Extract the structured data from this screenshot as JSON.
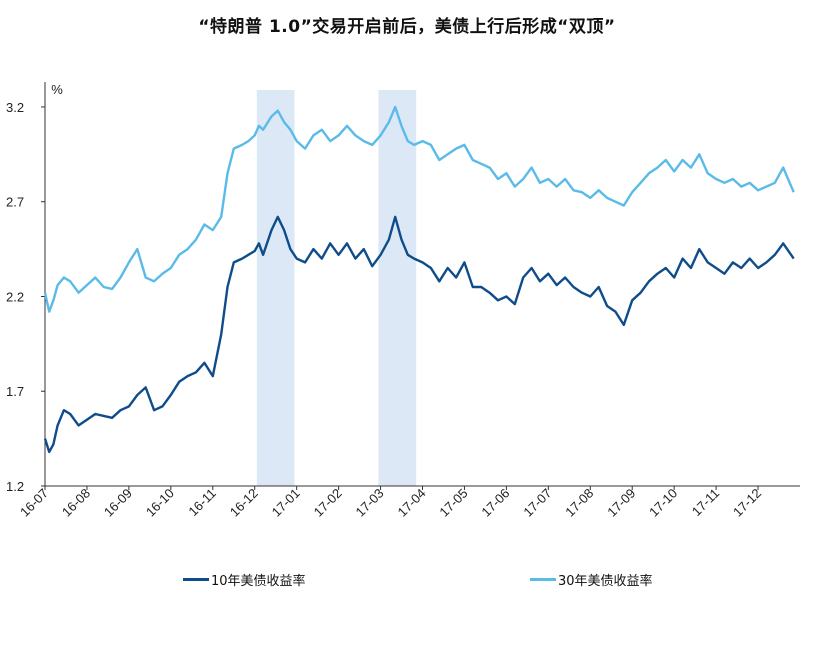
{
  "chart_data": {
    "type": "line",
    "title": "“特朗普 1.0”交易开启前后，美债上行后形成“双顶”",
    "ylabel": "%",
    "ylim": [
      1.2,
      3.3
    ],
    "yticks": [
      "1.2",
      "1.7",
      "2.2",
      "2.7",
      "3.2"
    ],
    "x_categories": [
      "16-07",
      "16-08",
      "16-09",
      "16-10",
      "16-11",
      "16-12",
      "17-01",
      "17-02",
      "17-03",
      "17-04",
      "17-05",
      "17-06",
      "17-07",
      "17-08",
      "17-09",
      "17-10",
      "17-11",
      "17-12"
    ],
    "shaded_periods": [
      {
        "start": 5.05,
        "end": 5.95
      },
      {
        "start": 7.95,
        "end": 8.85
      }
    ],
    "series": [
      {
        "name": "10年美债收益率",
        "color": "#0f4c8a",
        "x": [
          0,
          0.1,
          0.2,
          0.3,
          0.45,
          0.6,
          0.8,
          1.0,
          1.2,
          1.4,
          1.6,
          1.8,
          2.0,
          2.2,
          2.4,
          2.6,
          2.8,
          3.0,
          3.2,
          3.4,
          3.6,
          3.8,
          4.0,
          4.2,
          4.35,
          4.5,
          4.7,
          4.85,
          5.0,
          5.1,
          5.2,
          5.4,
          5.55,
          5.7,
          5.85,
          6.0,
          6.2,
          6.4,
          6.6,
          6.8,
          7.0,
          7.2,
          7.4,
          7.6,
          7.8,
          8.0,
          8.2,
          8.35,
          8.5,
          8.65,
          8.8,
          9.0,
          9.2,
          9.4,
          9.6,
          9.8,
          10.0,
          10.2,
          10.4,
          10.6,
          10.8,
          11.0,
          11.2,
          11.4,
          11.6,
          11.8,
          12.0,
          12.2,
          12.4,
          12.6,
          12.8,
          13.0,
          13.2,
          13.4,
          13.6,
          13.8,
          14.0,
          14.2,
          14.4,
          14.6,
          14.8,
          15.0,
          15.2,
          15.4,
          15.6,
          15.8,
          16.0,
          16.2,
          16.4,
          16.6,
          16.8,
          17.0,
          17.2,
          17.4,
          17.6,
          17.85
        ],
        "values": [
          1.45,
          1.38,
          1.42,
          1.52,
          1.6,
          1.58,
          1.52,
          1.55,
          1.58,
          1.57,
          1.56,
          1.6,
          1.62,
          1.68,
          1.72,
          1.6,
          1.62,
          1.68,
          1.75,
          1.78,
          1.8,
          1.85,
          1.78,
          2.0,
          2.25,
          2.38,
          2.4,
          2.42,
          2.44,
          2.48,
          2.42,
          2.55,
          2.62,
          2.55,
          2.45,
          2.4,
          2.38,
          2.45,
          2.4,
          2.48,
          2.42,
          2.48,
          2.4,
          2.45,
          2.36,
          2.42,
          2.5,
          2.62,
          2.5,
          2.42,
          2.4,
          2.38,
          2.35,
          2.28,
          2.35,
          2.3,
          2.38,
          2.25,
          2.25,
          2.22,
          2.18,
          2.2,
          2.16,
          2.3,
          2.35,
          2.28,
          2.32,
          2.26,
          2.3,
          2.25,
          2.22,
          2.2,
          2.25,
          2.15,
          2.12,
          2.05,
          2.18,
          2.22,
          2.28,
          2.32,
          2.35,
          2.3,
          2.4,
          2.35,
          2.45,
          2.38,
          2.35,
          2.32,
          2.38,
          2.35,
          2.4,
          2.35,
          2.38,
          2.42,
          2.48,
          2.4
        ]
      },
      {
        "name": "30年美债收益率",
        "color": "#5bbbe8",
        "x": [
          0,
          0.1,
          0.2,
          0.3,
          0.45,
          0.6,
          0.8,
          1.0,
          1.2,
          1.4,
          1.6,
          1.8,
          2.0,
          2.2,
          2.4,
          2.6,
          2.8,
          3.0,
          3.2,
          3.4,
          3.6,
          3.8,
          4.0,
          4.2,
          4.35,
          4.5,
          4.7,
          4.85,
          5.0,
          5.1,
          5.2,
          5.4,
          5.55,
          5.7,
          5.85,
          6.0,
          6.2,
          6.4,
          6.6,
          6.8,
          7.0,
          7.2,
          7.4,
          7.6,
          7.8,
          8.0,
          8.2,
          8.35,
          8.5,
          8.65,
          8.8,
          9.0,
          9.2,
          9.4,
          9.6,
          9.8,
          10.0,
          10.2,
          10.4,
          10.6,
          10.8,
          11.0,
          11.2,
          11.4,
          11.6,
          11.8,
          12.0,
          12.2,
          12.4,
          12.6,
          12.8,
          13.0,
          13.2,
          13.4,
          13.6,
          13.8,
          14.0,
          14.2,
          14.4,
          14.6,
          14.8,
          15.0,
          15.2,
          15.4,
          15.6,
          15.8,
          16.0,
          16.2,
          16.4,
          16.6,
          16.8,
          17.0,
          17.2,
          17.4,
          17.6,
          17.85
        ],
        "values": [
          2.22,
          2.12,
          2.18,
          2.26,
          2.3,
          2.28,
          2.22,
          2.26,
          2.3,
          2.25,
          2.24,
          2.3,
          2.38,
          2.45,
          2.3,
          2.28,
          2.32,
          2.35,
          2.42,
          2.45,
          2.5,
          2.58,
          2.55,
          2.62,
          2.85,
          2.98,
          3.0,
          3.02,
          3.05,
          3.1,
          3.08,
          3.15,
          3.18,
          3.12,
          3.08,
          3.02,
          2.98,
          3.05,
          3.08,
          3.02,
          3.05,
          3.1,
          3.05,
          3.02,
          3.0,
          3.05,
          3.12,
          3.2,
          3.1,
          3.02,
          3.0,
          3.02,
          3.0,
          2.92,
          2.95,
          2.98,
          3.0,
          2.92,
          2.9,
          2.88,
          2.82,
          2.85,
          2.78,
          2.82,
          2.88,
          2.8,
          2.82,
          2.78,
          2.82,
          2.76,
          2.75,
          2.72,
          2.76,
          2.72,
          2.7,
          2.68,
          2.75,
          2.8,
          2.85,
          2.88,
          2.92,
          2.86,
          2.92,
          2.88,
          2.95,
          2.85,
          2.82,
          2.8,
          2.82,
          2.78,
          2.8,
          2.76,
          2.78,
          2.8,
          2.88,
          2.75
        ]
      }
    ]
  },
  "legend": {
    "item1": "10年美债收益率",
    "item2": "30年美债收益率"
  }
}
